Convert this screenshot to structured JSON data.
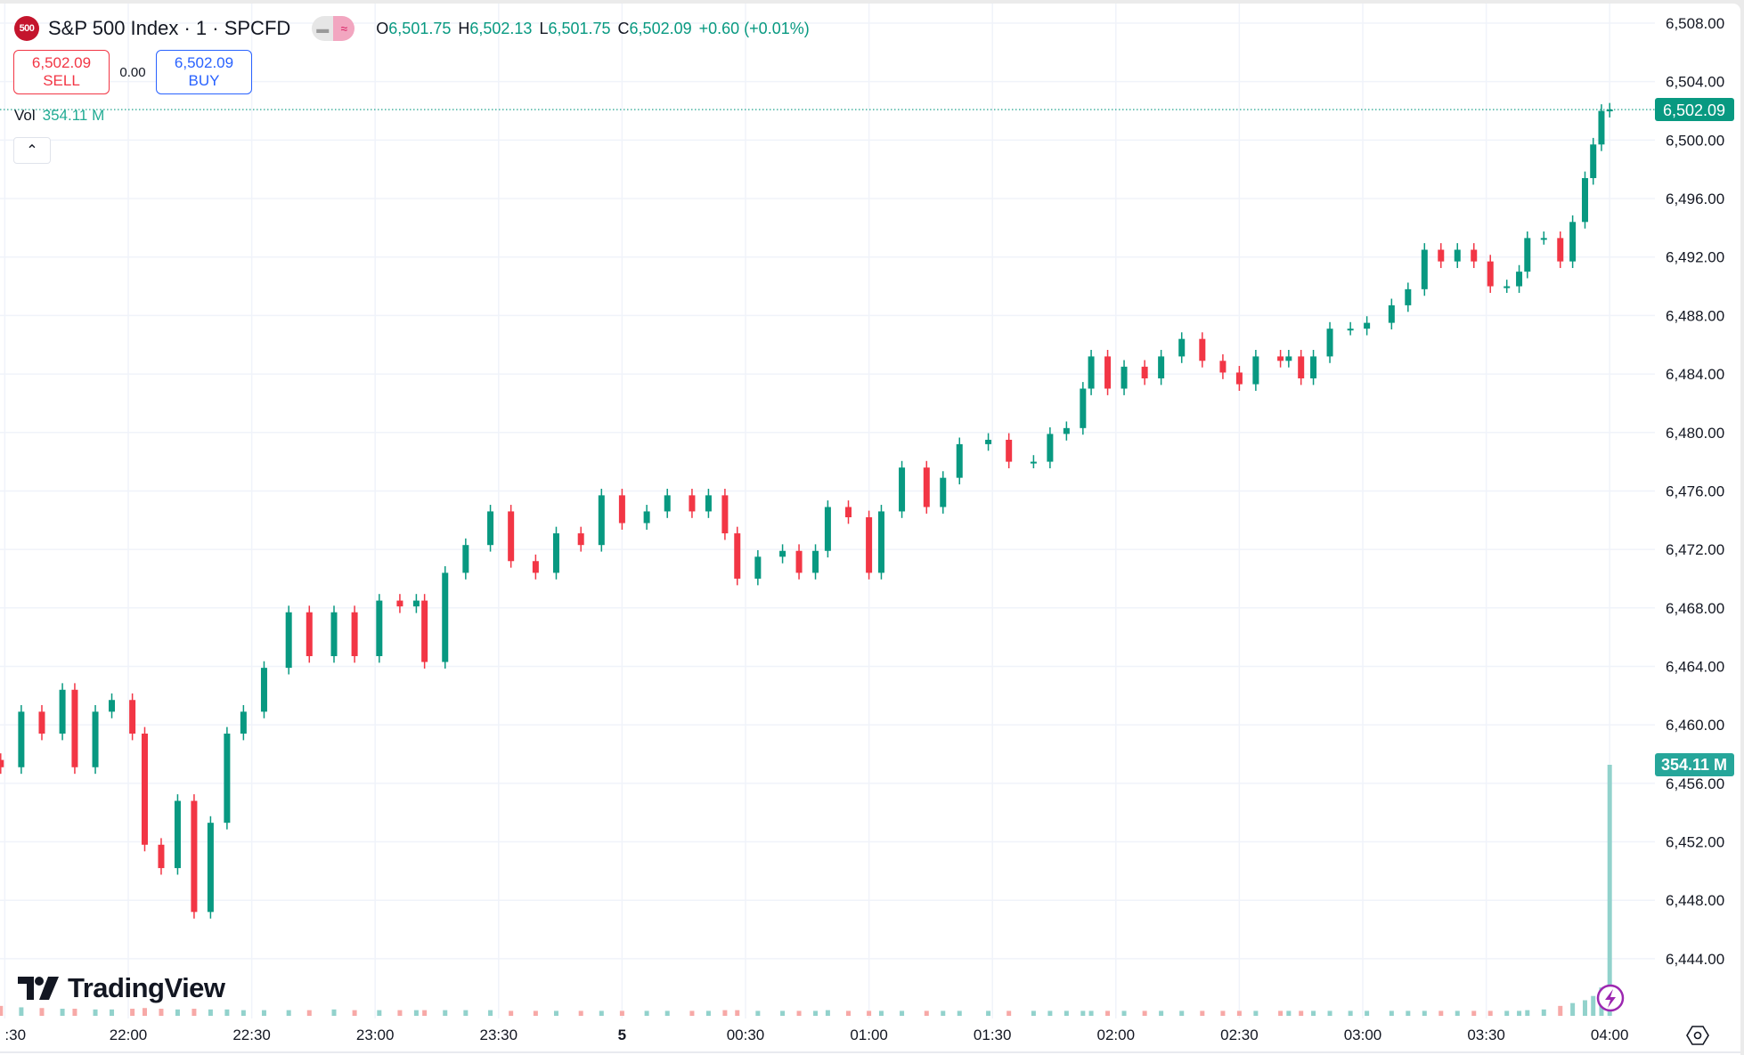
{
  "header": {
    "symbol_badge": "500",
    "title": "S&P 500 Index · 1 · SPCFD",
    "ohlc": {
      "o_label": "O",
      "o": "6,501.75",
      "h_label": "H",
      "h": "6,502.13",
      "l_label": "L",
      "l": "6,501.75",
      "c_label": "C",
      "c": "6,502.09",
      "change": "+0.60 (+0.01%)"
    }
  },
  "trade": {
    "sell_price": "6,502.09",
    "sell_label": "SELL",
    "spread": "0.00",
    "buy_price": "6,502.09",
    "buy_label": "BUY"
  },
  "volume_legend": {
    "label": "Vol",
    "value": "354.11 M"
  },
  "price_axis": {
    "last_price_label": "6,502.09",
    "volume_label": "354.11 M"
  },
  "logo": {
    "text": "TradingView"
  },
  "colors": {
    "up": "#089981",
    "down": "#f23645",
    "vol_up": "#92d2cc",
    "vol_down": "#f7a9a7",
    "last_price": "#089981",
    "volume_tag": "#26a69a",
    "grid": "#f0f3fa"
  },
  "icons": {
    "collapse": "chevron-up-icon",
    "settings": "settings-hexagon-icon",
    "lightning": "lightning-icon",
    "pill": "minus-and-approx-icons"
  },
  "chart_data": {
    "type": "candlestick",
    "title": "S&P 500 Index · 1 · SPCFD",
    "yticks": [
      "6,508.00",
      "6,504.00",
      "6,500.00",
      "6,496.00",
      "6,492.00",
      "6,488.00",
      "6,484.00",
      "6,480.00",
      "6,476.00",
      "6,472.00",
      "6,468.00",
      "6,464.00",
      "6,460.00",
      "6,456.00",
      "6,452.00",
      "6,448.00",
      "6,444.00"
    ],
    "ylim": [
      6444,
      6508
    ],
    "xticks": [
      ":30",
      "22:00",
      "22:30",
      "23:00",
      "23:30",
      "5",
      "00:30",
      "01:00",
      "01:30",
      "02:00",
      "02:30",
      "03:00",
      "03:30",
      "04:00"
    ],
    "grid": true,
    "last_price": 6502.09,
    "times": [
      "21:29",
      "21:34",
      "21:39",
      "21:44",
      "21:47",
      "21:52",
      "21:56",
      "22:01",
      "22:04",
      "22:08",
      "22:12",
      "22:16",
      "22:20",
      "22:24",
      "22:28",
      "22:33",
      "22:39",
      "22:44",
      "22:50",
      "22:55",
      "23:01",
      "23:06",
      "23:10",
      "23:12",
      "23:17",
      "23:22",
      "23:28",
      "23:33",
      "23:39",
      "23:44",
      "23:50",
      "23:55",
      "00:00",
      "00:06",
      "00:11",
      "00:17",
      "00:21",
      "00:25",
      "00:28",
      "00:33",
      "00:39",
      "00:43",
      "00:47",
      "00:50",
      "00:55",
      "01:00",
      "01:03",
      "01:08",
      "01:14",
      "01:18",
      "01:22",
      "01:29",
      "01:34",
      "01:40",
      "01:44",
      "01:48",
      "01:52",
      "01:54",
      "01:58",
      "02:02",
      "02:07",
      "02:11",
      "02:16",
      "02:21",
      "02:26",
      "02:30",
      "02:34",
      "02:40",
      "02:42",
      "02:45",
      "02:48",
      "02:52",
      "02:57",
      "03:01",
      "03:07",
      "03:11",
      "03:15",
      "03:19",
      "03:23",
      "03:27",
      "03:31",
      "03:35",
      "03:38",
      "03:40",
      "03:44",
      "03:48",
      "03:51",
      "03:54",
      "03:56",
      "03:58",
      "04:00"
    ],
    "close": [
      6457.1,
      6460.9,
      6459.4,
      6462.4,
      6457.1,
      6460.9,
      6461.7,
      6459.4,
      6451.8,
      6450.2,
      6454.8,
      6447.2,
      6453.3,
      6459.4,
      6460.9,
      6463.9,
      6467.7,
      6464.7,
      6467.7,
      6464.7,
      6468.5,
      6468.1,
      6468.5,
      6464.3,
      6470.4,
      6472.3,
      6474.6,
      6471.2,
      6470.4,
      6473.1,
      6472.3,
      6475.7,
      6473.8,
      6474.6,
      6475.7,
      6474.6,
      6475.7,
      6473.1,
      6470.0,
      6471.5,
      6471.9,
      6470.4,
      6471.9,
      6474.9,
      6474.2,
      6470.4,
      6474.6,
      6477.6,
      6474.9,
      6476.9,
      6479.2,
      6479.5,
      6478.0,
      6478.0,
      6479.9,
      6480.3,
      6483.0,
      6485.2,
      6483.0,
      6484.5,
      6483.7,
      6485.2,
      6486.4,
      6484.9,
      6484.1,
      6483.3,
      6485.2,
      6484.9,
      6485.2,
      6483.7,
      6485.2,
      6487.1,
      6487.1,
      6487.5,
      6488.7,
      6489.8,
      6492.5,
      6491.7,
      6492.5,
      6491.7,
      6490.0,
      6490.0,
      6491.0,
      6493.3,
      6493.3,
      6491.7,
      6494.4,
      6497.4,
      6499.7,
      6502.0,
      6502.09
    ],
    "volume_m": [
      14,
      12,
      11,
      10,
      10,
      9,
      9,
      10,
      11,
      10,
      9,
      10,
      9,
      9,
      8,
      8,
      8,
      8,
      9,
      8,
      8,
      8,
      8,
      8,
      8,
      8,
      8,
      7,
      7,
      7,
      7,
      7,
      7,
      7,
      7,
      7,
      7,
      8,
      8,
      7,
      7,
      7,
      7,
      8,
      7,
      7,
      7,
      7,
      7,
      7,
      7,
      7,
      7,
      7,
      7,
      7,
      7,
      7,
      7,
      7,
      7,
      7,
      7,
      7,
      7,
      7,
      7,
      7,
      7,
      7,
      7,
      7,
      7,
      7,
      7,
      7,
      7,
      7,
      7,
      7,
      7,
      7,
      7,
      8,
      9,
      14,
      18,
      22,
      28,
      40,
      354.11
    ]
  }
}
